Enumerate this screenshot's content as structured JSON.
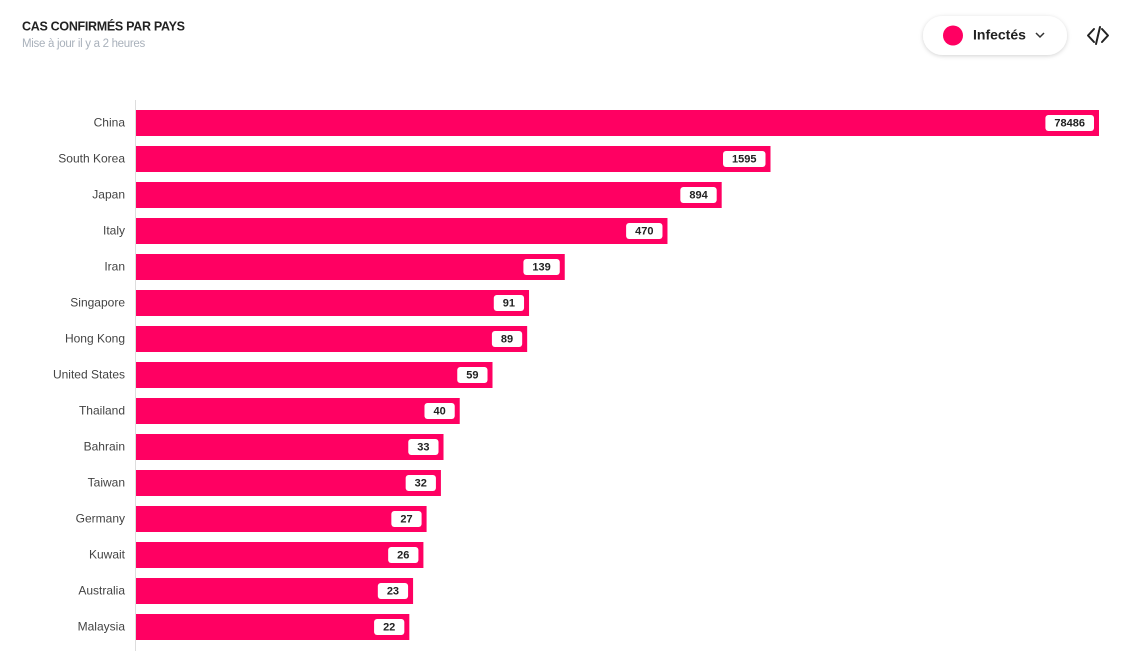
{
  "chart_data": {
    "type": "bar",
    "orientation": "horizontal",
    "title": "CAS CONFIRMÉS PAR PAYS",
    "subtitle": "Mise à jour il y a 2 heures",
    "categories": [
      "China",
      "South Korea",
      "Japan",
      "Italy",
      "Iran",
      "Singapore",
      "Hong Kong",
      "United States",
      "Thailand",
      "Bahrain",
      "Taiwan",
      "Germany",
      "Kuwait",
      "Australia",
      "Malaysia"
    ],
    "series": [
      {
        "name": "Infectés",
        "color": "#ff0062",
        "values": [
          78486,
          1595,
          894,
          470,
          139,
          91,
          89,
          59,
          40,
          33,
          32,
          27,
          26,
          23,
          22
        ]
      }
    ],
    "log_scale": true,
    "xlim": [
      0.85,
      78486
    ]
  }
}
